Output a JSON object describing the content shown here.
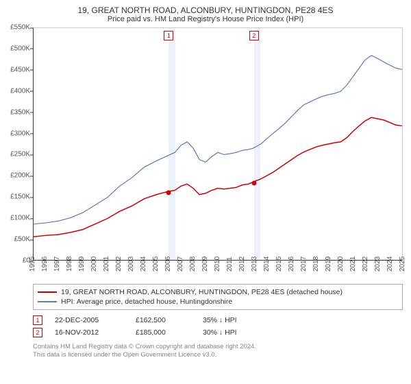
{
  "title": "19, GREAT NORTH ROAD, ALCONBURY, HUNTINGDON, PE28 4ES",
  "subtitle": "Price paid vs. HM Land Registry's House Price Index (HPI)",
  "chart": {
    "type": "line",
    "x_range": [
      1995,
      2025
    ],
    "y_range": [
      0,
      550
    ],
    "y_ticks": [
      0,
      50,
      100,
      150,
      200,
      250,
      300,
      350,
      400,
      450,
      500,
      550
    ],
    "y_tick_labels": [
      "£0",
      "£50K",
      "£100K",
      "£150K",
      "£200K",
      "£250K",
      "£300K",
      "£350K",
      "£400K",
      "£450K",
      "£500K",
      "£550K"
    ],
    "x_ticks": [
      1995,
      1996,
      1997,
      1998,
      1999,
      2000,
      2001,
      2002,
      2003,
      2004,
      2005,
      2006,
      2007,
      2008,
      2009,
      2010,
      2011,
      2012,
      2013,
      2014,
      2015,
      2016,
      2017,
      2018,
      2019,
      2020,
      2021,
      2022,
      2023,
      2024,
      2025
    ],
    "background_color": "#ffffff",
    "axis_color": "#333333",
    "band_color": "#eef1fa",
    "series": [
      {
        "name": "property",
        "color": "#cc0000",
        "width": 1.5,
        "points": [
          [
            1995,
            55
          ],
          [
            1996,
            58
          ],
          [
            1997,
            60
          ],
          [
            1998,
            65
          ],
          [
            1999,
            72
          ],
          [
            2000,
            85
          ],
          [
            2001,
            98
          ],
          [
            2002,
            115
          ],
          [
            2003,
            128
          ],
          [
            2004,
            145
          ],
          [
            2005,
            155
          ],
          [
            2005.97,
            162.5
          ],
          [
            2006.5,
            165
          ],
          [
            2007,
            175
          ],
          [
            2007.5,
            180
          ],
          [
            2008,
            170
          ],
          [
            2008.5,
            155
          ],
          [
            2009,
            158
          ],
          [
            2009.5,
            165
          ],
          [
            2010,
            170
          ],
          [
            2010.5,
            168
          ],
          [
            2011,
            170
          ],
          [
            2011.5,
            172
          ],
          [
            2012,
            178
          ],
          [
            2012.5,
            180
          ],
          [
            2012.88,
            185
          ],
          [
            2013.5,
            192
          ],
          [
            2014,
            200
          ],
          [
            2014.5,
            208
          ],
          [
            2015,
            218
          ],
          [
            2015.5,
            228
          ],
          [
            2016,
            238
          ],
          [
            2016.5,
            248
          ],
          [
            2017,
            256
          ],
          [
            2017.5,
            262
          ],
          [
            2018,
            268
          ],
          [
            2018.5,
            272
          ],
          [
            2019,
            275
          ],
          [
            2019.5,
            278
          ],
          [
            2020,
            280
          ],
          [
            2020.5,
            290
          ],
          [
            2021,
            305
          ],
          [
            2021.5,
            318
          ],
          [
            2022,
            330
          ],
          [
            2022.5,
            338
          ],
          [
            2023,
            335
          ],
          [
            2023.5,
            332
          ],
          [
            2024,
            326
          ],
          [
            2024.5,
            320
          ],
          [
            2025,
            318
          ]
        ]
      },
      {
        "name": "hpi",
        "color": "#5b7bb8",
        "width": 1.2,
        "points": [
          [
            1995,
            85
          ],
          [
            1996,
            88
          ],
          [
            1997,
            92
          ],
          [
            1998,
            100
          ],
          [
            1999,
            112
          ],
          [
            2000,
            130
          ],
          [
            2001,
            148
          ],
          [
            2002,
            175
          ],
          [
            2003,
            195
          ],
          [
            2004,
            220
          ],
          [
            2005,
            235
          ],
          [
            2005.97,
            248
          ],
          [
            2006.5,
            255
          ],
          [
            2007,
            272
          ],
          [
            2007.5,
            280
          ],
          [
            2008,
            265
          ],
          [
            2008.5,
            238
          ],
          [
            2009,
            232
          ],
          [
            2009.5,
            245
          ],
          [
            2010,
            255
          ],
          [
            2010.5,
            250
          ],
          [
            2011,
            252
          ],
          [
            2011.5,
            255
          ],
          [
            2012,
            260
          ],
          [
            2012.5,
            262
          ],
          [
            2012.88,
            265
          ],
          [
            2013.5,
            275
          ],
          [
            2014,
            288
          ],
          [
            2014.5,
            300
          ],
          [
            2015,
            312
          ],
          [
            2015.5,
            325
          ],
          [
            2016,
            340
          ],
          [
            2016.5,
            355
          ],
          [
            2017,
            368
          ],
          [
            2017.5,
            375
          ],
          [
            2018,
            382
          ],
          [
            2018.5,
            388
          ],
          [
            2019,
            392
          ],
          [
            2019.5,
            395
          ],
          [
            2020,
            400
          ],
          [
            2020.5,
            415
          ],
          [
            2021,
            435
          ],
          [
            2021.5,
            455
          ],
          [
            2022,
            475
          ],
          [
            2022.5,
            485
          ],
          [
            2023,
            478
          ],
          [
            2023.5,
            470
          ],
          [
            2024,
            462
          ],
          [
            2024.5,
            455
          ],
          [
            2025,
            452
          ]
        ]
      }
    ],
    "bands": [
      {
        "from": 2005.97,
        "to": 2006.5
      },
      {
        "from": 2012.88,
        "to": 2013.4
      }
    ],
    "markers": [
      {
        "n": "1",
        "x": 2005.97,
        "y": 162.5,
        "color": "#cc0000"
      },
      {
        "n": "2",
        "x": 2012.88,
        "y": 185,
        "color": "#cc0000"
      }
    ]
  },
  "legend": {
    "items": [
      {
        "color": "#cc0000",
        "label": "19, GREAT NORTH ROAD, ALCONBURY, HUNTINGDON, PE28 4ES (detached house)"
      },
      {
        "color": "#5b7bb8",
        "label": "HPI: Average price, detached house, Huntingdonshire"
      }
    ]
  },
  "sales": [
    {
      "n": "1",
      "color": "#cc0000",
      "date": "22-DEC-2005",
      "price": "£162,500",
      "delta": "35% ↓ HPI"
    },
    {
      "n": "2",
      "color": "#cc0000",
      "date": "16-NOV-2012",
      "price": "£185,000",
      "delta": "30% ↓ HPI"
    }
  ],
  "footer": {
    "line1": "Contains HM Land Registry data © Crown copyright and database right 2024.",
    "line2": "This data is licensed under the Open Government Licence v3.0."
  }
}
